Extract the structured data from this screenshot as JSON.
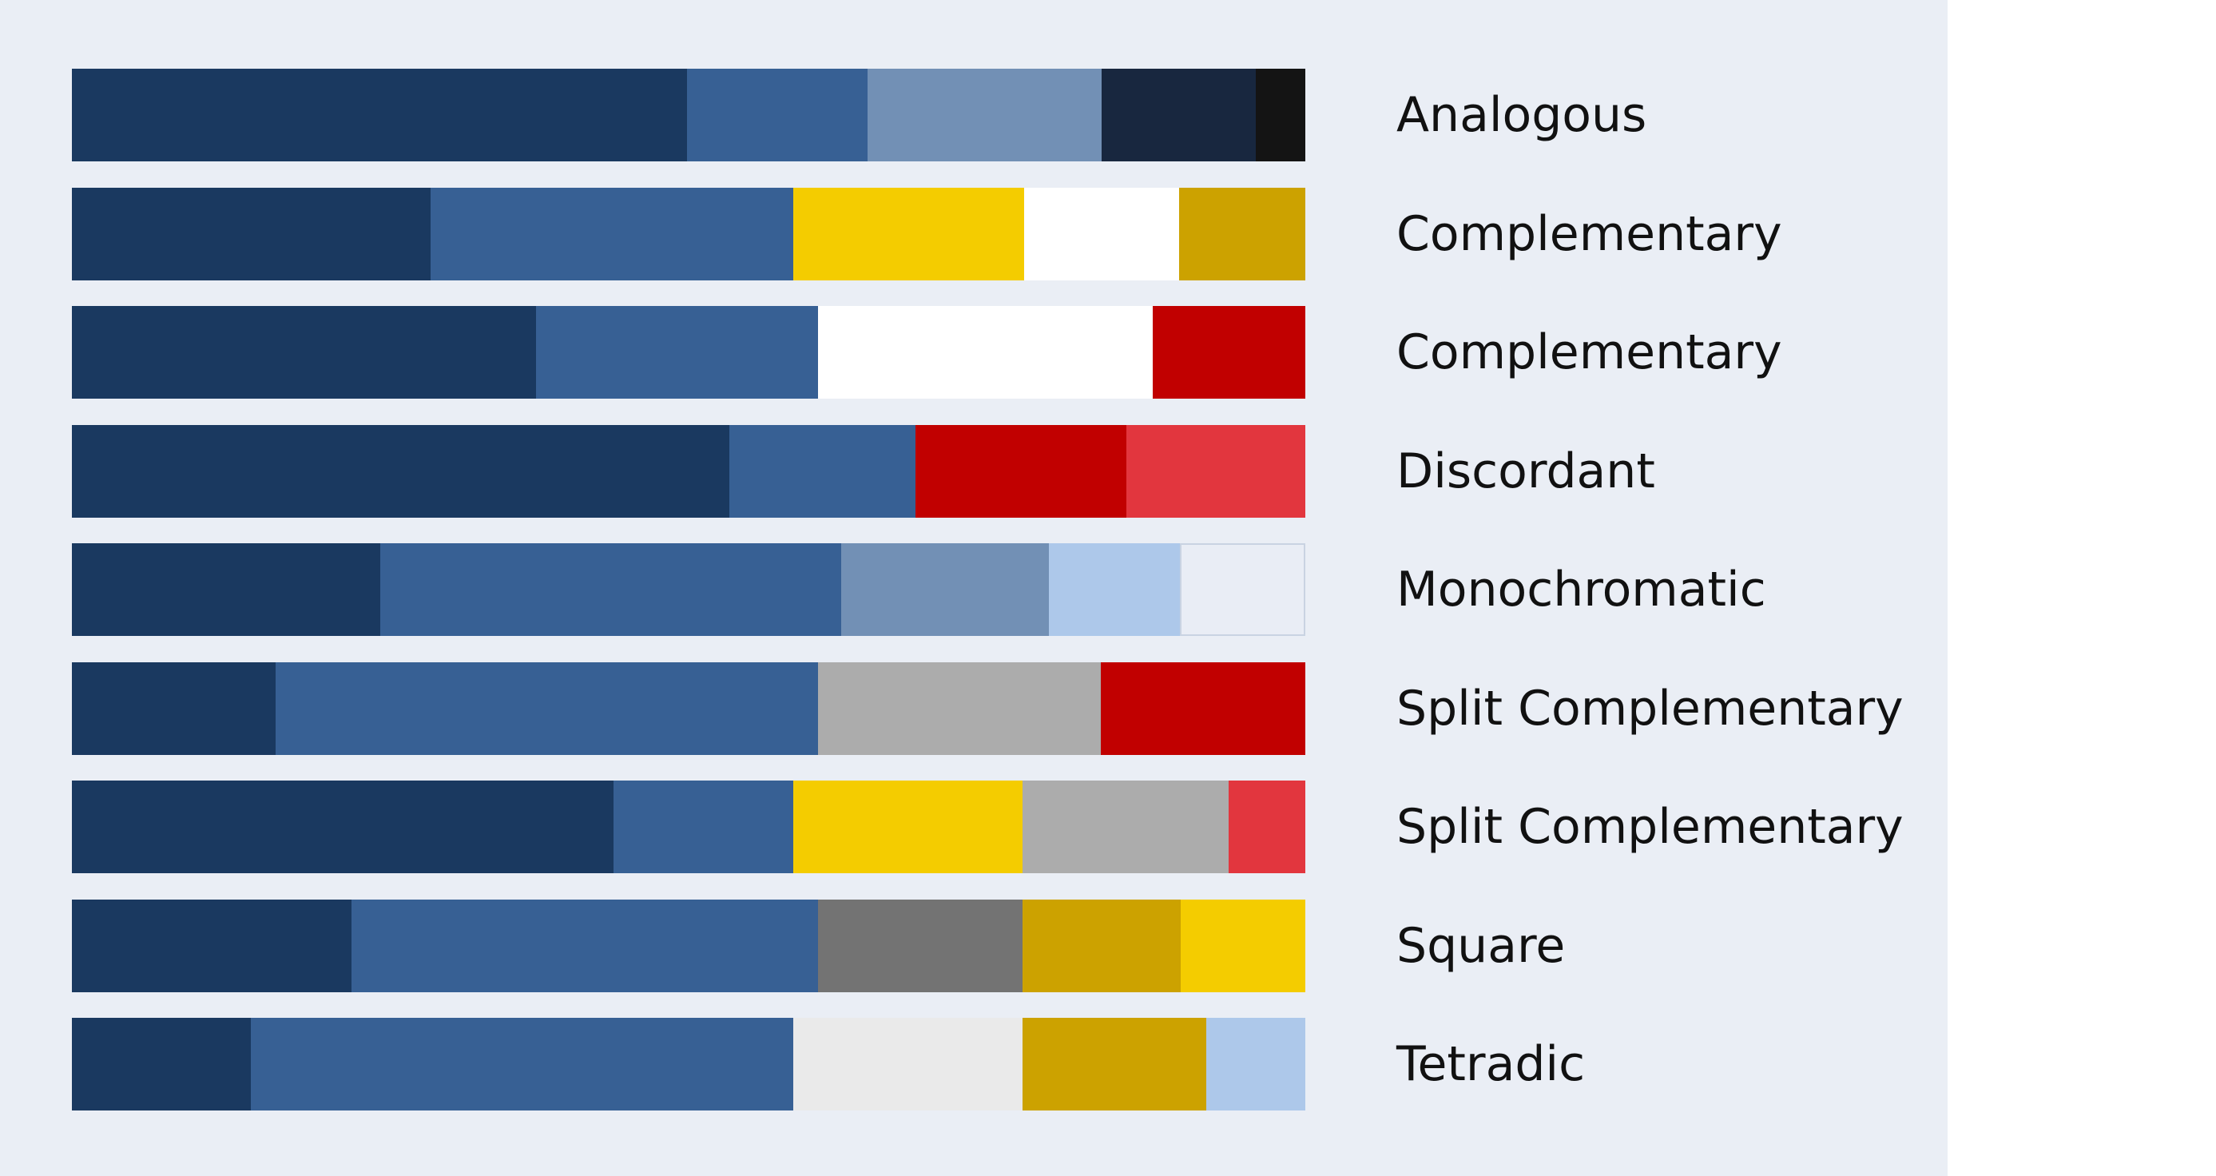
{
  "palettes": [
    {
      "label": "Analogous",
      "swatches": [
        {
          "color": "#1a3960",
          "share": 0.499
        },
        {
          "color": "#376094",
          "share": 0.146
        },
        {
          "color": "#7290b5",
          "share": 0.19
        },
        {
          "color": "#18273f",
          "share": 0.125
        },
        {
          "color": "#141414",
          "share": 0.04
        }
      ]
    },
    {
      "label": "Complementary",
      "swatches": [
        {
          "color": "#1a3960",
          "share": 0.291
        },
        {
          "color": "#376094",
          "share": 0.294
        },
        {
          "color": "#f4cc00",
          "share": 0.187
        },
        {
          "color": "#ffffff",
          "share": 0.126
        },
        {
          "color": "#cca200",
          "share": 0.102
        }
      ]
    },
    {
      "label": "Complementary",
      "swatches": [
        {
          "color": "#1a3960",
          "share": 0.376
        },
        {
          "color": "#376094",
          "share": 0.229
        },
        {
          "color": "#ffffff",
          "share": 0.271
        },
        {
          "color": "#c10000",
          "share": 0.124
        }
      ]
    },
    {
      "label": "Discordant",
      "swatches": [
        {
          "color": "#1a3960",
          "share": 0.533
        },
        {
          "color": "#376094",
          "share": 0.151
        },
        {
          "color": "#c10000",
          "share": 0.171
        },
        {
          "color": "#e2363e",
          "share": 0.145
        }
      ]
    },
    {
      "label": "Monochromatic",
      "swatches": [
        {
          "color": "#1a3960",
          "share": 0.25
        },
        {
          "color": "#376094",
          "share": 0.374
        },
        {
          "color": "#7290b5",
          "share": 0.168
        },
        {
          "color": "#adc8ea",
          "share": 0.106
        },
        {
          "color": "#e9edf5",
          "share": 0.102
        }
      ]
    },
    {
      "label": "Split Complementary",
      "swatches": [
        {
          "color": "#1a3960",
          "share": 0.165
        },
        {
          "color": "#376094",
          "share": 0.44
        },
        {
          "color": "#acacac",
          "share": 0.229
        },
        {
          "color": "#c10000",
          "share": 0.166
        }
      ]
    },
    {
      "label": "Split Complementary",
      "swatches": [
        {
          "color": "#1a3960",
          "share": 0.439
        },
        {
          "color": "#376094",
          "share": 0.146
        },
        {
          "color": "#f4cc00",
          "share": 0.186
        },
        {
          "color": "#acacac",
          "share": 0.167
        },
        {
          "color": "#e2363e",
          "share": 0.062
        }
      ]
    },
    {
      "label": "Square",
      "swatches": [
        {
          "color": "#1a3960",
          "share": 0.227
        },
        {
          "color": "#376094",
          "share": 0.378
        },
        {
          "color": "#737373",
          "share": 0.166
        },
        {
          "color": "#cca200",
          "share": 0.128
        },
        {
          "color": "#f4cc00",
          "share": 0.101
        }
      ]
    },
    {
      "label": "Tetradic",
      "swatches": [
        {
          "color": "#1a3960",
          "share": 0.145
        },
        {
          "color": "#376094",
          "share": 0.44
        },
        {
          "color": "#eaeaea",
          "share": 0.186
        },
        {
          "color": "#cca200",
          "share": 0.149
        },
        {
          "color": "#adc8ea",
          "share": 0.08
        }
      ]
    }
  ]
}
